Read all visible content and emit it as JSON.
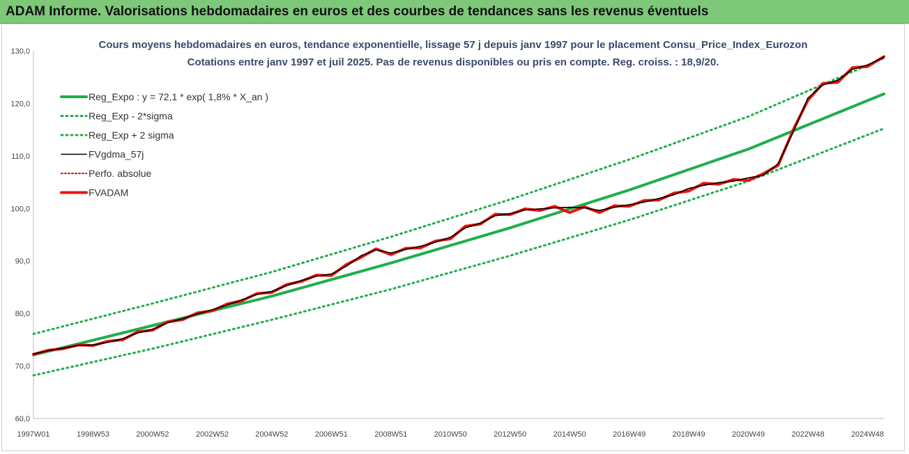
{
  "header": {
    "title": "ADAM Informe. Valorisations hebdomadaires en euros et des courbes de tendances sans les revenus éventuels"
  },
  "chart_data": {
    "type": "line",
    "title": "Cours moyens hebdomadaires en euros, tendance exponentielle, lissage 57 j depuis janv 1997 pour le placement Consu_Price_Index_Eurozon",
    "subtitle": "Cotations entre janv 1997 et juil 2025. Pas de revenus disponibles ou pris en compte. Reg. croiss. : 18,9/20.",
    "xlabel": "",
    "ylabel": "",
    "ylim": [
      60,
      130
    ],
    "xlim": [
      1997.0,
      2025.55
    ],
    "grid": false,
    "legend_position": "top-left",
    "yticks": [
      "60,0",
      "70,0",
      "80,0",
      "90,0",
      "100,0",
      "110,0",
      "120,0",
      "130,0"
    ],
    "xticks": [
      {
        "label": "1997W01",
        "x": 1997.0
      },
      {
        "label": "1998W53",
        "x": 1999.0
      },
      {
        "label": "2000W52",
        "x": 2001.0
      },
      {
        "label": "2002W52",
        "x": 2003.0
      },
      {
        "label": "2004W52",
        "x": 2005.0
      },
      {
        "label": "2006W51",
        "x": 2007.0
      },
      {
        "label": "2008W51",
        "x": 2009.0
      },
      {
        "label": "2010W50",
        "x": 2011.0
      },
      {
        "label": "2012W50",
        "x": 2013.0
      },
      {
        "label": "2014W50",
        "x": 2015.0
      },
      {
        "label": "2016W49",
        "x": 2017.0
      },
      {
        "label": "2018W49",
        "x": 2019.0
      },
      {
        "label": "2020W49",
        "x": 2021.0
      },
      {
        "label": "2022W48",
        "x": 2023.0
      },
      {
        "label": "2024W48",
        "x": 2025.0
      }
    ],
    "series": [
      {
        "name": "Reg_Expo : y = 72,1 * exp( 1,8% *  X_an )",
        "color": "#1fae4b",
        "style": "solid-thick",
        "x": [
          1997.0,
          2001.0,
          2005.0,
          2009.0,
          2013.0,
          2017.0,
          2021.0,
          2025.55
        ],
        "values": [
          72.1,
          77.7,
          83.3,
          89.6,
          96.3,
          103.5,
          111.3,
          121.8
        ]
      },
      {
        "name": "Reg_Exp - 2*sigma",
        "color": "#1fae4b",
        "style": "dotted",
        "x": [
          1997.0,
          2001.0,
          2005.0,
          2009.0,
          2013.0,
          2017.0,
          2021.0,
          2025.55
        ],
        "values": [
          68.2,
          73.3,
          78.8,
          84.6,
          91.0,
          97.8,
          105.2,
          115.2
        ]
      },
      {
        "name": "Reg_Exp + 2 sigma",
        "color": "#1fae4b",
        "style": "dotted",
        "x": [
          1997.0,
          2001.0,
          2005.0,
          2009.0,
          2013.0,
          2017.0,
          2021.0,
          2025.55
        ],
        "values": [
          76.1,
          81.9,
          87.9,
          94.6,
          101.7,
          109.3,
          117.5,
          128.6
        ]
      },
      {
        "name": "FVgdma_57j",
        "color": "#000000",
        "style": "solid",
        "x": [
          1997.0,
          1997.5,
          1998.0,
          1998.5,
          1999.0,
          1999.5,
          2000.0,
          2000.5,
          2001.0,
          2001.5,
          2002.0,
          2002.5,
          2003.0,
          2003.5,
          2004.0,
          2004.5,
          2005.0,
          2005.5,
          2006.0,
          2006.5,
          2007.0,
          2007.5,
          2008.0,
          2008.5,
          2009.0,
          2009.5,
          2010.0,
          2010.5,
          2011.0,
          2011.5,
          2012.0,
          2012.5,
          2013.0,
          2013.5,
          2014.0,
          2014.5,
          2015.0,
          2015.5,
          2016.0,
          2016.5,
          2017.0,
          2017.5,
          2018.0,
          2018.5,
          2019.0,
          2019.5,
          2020.0,
          2020.5,
          2021.0,
          2021.5,
          2022.0,
          2022.5,
          2023.0,
          2023.5,
          2024.0,
          2024.5,
          2025.0,
          2025.55
        ],
        "values": [
          72.3,
          72.9,
          73.4,
          73.9,
          74.0,
          74.5,
          75.2,
          76.3,
          77.0,
          78.2,
          79.0,
          79.9,
          80.7,
          81.6,
          82.6,
          83.6,
          84.2,
          85.3,
          86.3,
          87.1,
          87.5,
          89.0,
          91.0,
          92.1,
          91.5,
          92.2,
          92.8,
          93.6,
          94.5,
          96.3,
          97.2,
          98.6,
          99.0,
          99.7,
          99.9,
          100.1,
          100.2,
          100.1,
          99.6,
          100.2,
          100.7,
          101.2,
          101.9,
          102.6,
          103.8,
          104.4,
          104.9,
          105.2,
          105.8,
          106.3,
          108.5,
          114.5,
          121.0,
          123.5,
          124.4,
          126.5,
          127.3,
          128.8
        ]
      },
      {
        "name": "Perfo. absolue",
        "color": "#d40000",
        "style": "dotted",
        "x": [
          1997.0,
          1997.5,
          1998.0,
          1998.5,
          1999.0,
          1999.5,
          2000.0,
          2000.5,
          2001.0,
          2001.5,
          2002.0,
          2002.5,
          2003.0,
          2003.5,
          2004.0,
          2004.5,
          2005.0,
          2005.5,
          2006.0,
          2006.5,
          2007.0,
          2007.5,
          2008.0,
          2008.5,
          2009.0,
          2009.5,
          2010.0,
          2010.5,
          2011.0,
          2011.5,
          2012.0,
          2012.5,
          2013.0,
          2013.5,
          2014.0,
          2014.5,
          2015.0,
          2015.5,
          2016.0,
          2016.5,
          2017.0,
          2017.5,
          2018.0,
          2018.5,
          2019.0,
          2019.5,
          2020.0,
          2020.5,
          2021.0,
          2021.5,
          2022.0,
          2022.5,
          2023.0,
          2023.5,
          2024.0,
          2024.5,
          2025.0,
          2025.55
        ],
        "values": [
          72.3,
          72.9,
          73.4,
          73.9,
          74.0,
          74.5,
          75.2,
          76.3,
          77.0,
          78.2,
          79.0,
          79.9,
          80.7,
          81.6,
          82.6,
          83.6,
          84.2,
          85.3,
          86.3,
          87.1,
          87.5,
          89.0,
          91.0,
          92.1,
          91.5,
          92.2,
          92.8,
          93.6,
          94.5,
          96.3,
          97.2,
          98.6,
          99.0,
          99.7,
          99.9,
          100.1,
          100.2,
          100.1,
          99.6,
          100.2,
          100.7,
          101.2,
          101.9,
          102.6,
          103.8,
          104.4,
          104.9,
          105.2,
          105.8,
          106.3,
          108.5,
          114.5,
          121.0,
          123.5,
          124.4,
          126.5,
          127.3,
          128.8
        ]
      },
      {
        "name": "FVADAM",
        "color": "#e8150d",
        "style": "solid-thick",
        "x": [
          1997.0,
          1997.5,
          1998.0,
          1998.5,
          1999.0,
          1999.5,
          2000.0,
          2000.5,
          2001.0,
          2001.5,
          2002.0,
          2002.5,
          2003.0,
          2003.5,
          2004.0,
          2004.5,
          2005.0,
          2005.5,
          2006.0,
          2006.5,
          2007.0,
          2007.5,
          2008.0,
          2008.5,
          2009.0,
          2009.5,
          2010.0,
          2010.5,
          2011.0,
          2011.5,
          2012.0,
          2012.5,
          2013.0,
          2013.5,
          2014.0,
          2014.5,
          2015.0,
          2015.5,
          2016.0,
          2016.5,
          2017.0,
          2017.5,
          2018.0,
          2018.5,
          2019.0,
          2019.5,
          2020.0,
          2020.5,
          2021.0,
          2021.5,
          2022.0,
          2022.5,
          2023.0,
          2023.5,
          2024.0,
          2024.5,
          2025.0,
          2025.55
        ],
        "values": [
          72.2,
          73.0,
          73.3,
          74.0,
          73.9,
          74.7,
          75.0,
          76.5,
          76.8,
          78.4,
          78.8,
          80.1,
          80.5,
          81.8,
          82.4,
          83.8,
          84.0,
          85.5,
          86.1,
          87.3,
          87.2,
          89.3,
          90.7,
          92.3,
          91.2,
          92.4,
          92.5,
          93.8,
          94.2,
          96.6,
          97.0,
          98.9,
          98.8,
          99.9,
          99.6,
          100.4,
          99.2,
          100.3,
          99.2,
          100.5,
          100.4,
          101.5,
          101.6,
          102.9,
          103.3,
          104.8,
          104.6,
          105.5,
          105.3,
          106.6,
          108.2,
          114.9,
          120.6,
          123.8,
          124.0,
          126.8,
          127.0,
          128.9
        ]
      }
    ]
  }
}
